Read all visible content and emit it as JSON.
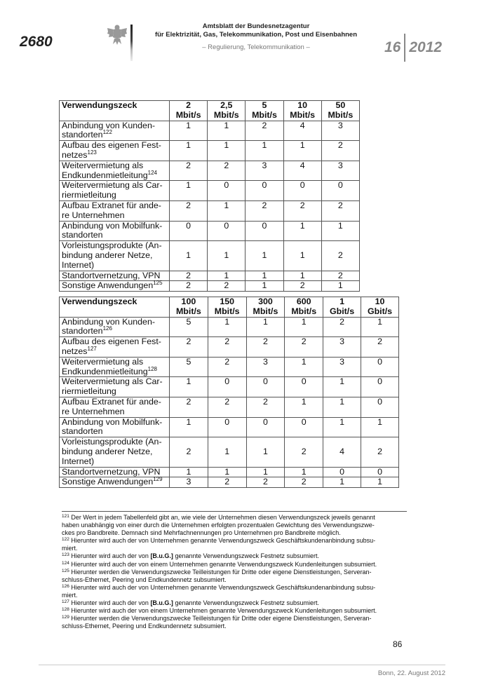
{
  "header": {
    "issue_number": "2680",
    "title_line1": "Amtsblatt der Bundesnetzagentur",
    "title_line2": "für Elektrizität, Gas, Telekommunikation, Post und Eisenbahnen",
    "subtitle": "– Regulierung, Telekommunikation –",
    "volume_number": "16",
    "volume_year": "2012",
    "logo": "federal-eagle-icon"
  },
  "tables": [
    {
      "columns": [
        [
          "Verwendungszeck"
        ],
        [
          "2",
          "Mbit/s"
        ],
        [
          "2,5",
          "Mbit/s"
        ],
        [
          "5",
          "Mbit/s"
        ],
        [
          "10",
          "Mbit/s"
        ],
        [
          "50",
          "Mbit/s"
        ]
      ],
      "rows": [
        {
          "label": [
            "Anbindung von Kunden-",
            "standorten"
          ],
          "sup": "122",
          "values": [
            "1",
            "1",
            "2",
            "4",
            "3"
          ]
        },
        {
          "label": [
            "Aufbau des eigenen Fest-",
            "netzes"
          ],
          "sup": "123",
          "values": [
            "1",
            "1",
            "1",
            "1",
            "2"
          ]
        },
        {
          "label": [
            "Weitervermietung als",
            "Endkundenmietleitung"
          ],
          "sup": "124",
          "values": [
            "2",
            "2",
            "3",
            "4",
            "3"
          ]
        },
        {
          "label": [
            "Weitervermietung als Car-",
            "riermietleitung"
          ],
          "sup": "",
          "values": [
            "1",
            "0",
            "0",
            "0",
            "0"
          ]
        },
        {
          "label": [
            "Aufbau Extranet für ande-",
            "re Unternehmen"
          ],
          "sup": "",
          "values": [
            "2",
            "1",
            "2",
            "2",
            "2"
          ]
        },
        {
          "label": [
            "Anbindung von Mobilfunk-",
            "standorten"
          ],
          "sup": "",
          "values": [
            "0",
            "0",
            "0",
            "1",
            "1"
          ]
        },
        {
          "label": [
            "Vorleistungsprodukte (An-",
            "bindung anderer Netze,",
            "Internet)"
          ],
          "sup": "",
          "values": [
            "1",
            "1",
            "1",
            "1",
            "2"
          ],
          "middle": true
        },
        {
          "label": [
            "Standortvernetzung, VPN"
          ],
          "sup": "",
          "values": [
            "2",
            "1",
            "1",
            "1",
            "2"
          ]
        },
        {
          "label": [
            "Sonstige Anwendungen"
          ],
          "sup": "125",
          "values": [
            "2",
            "2",
            "1",
            "2",
            "1"
          ]
        }
      ]
    },
    {
      "columns": [
        [
          "Verwendungszeck"
        ],
        [
          "100",
          "Mbit/s"
        ],
        [
          "150",
          "Mbit/s"
        ],
        [
          "300",
          "Mbit/s"
        ],
        [
          "600",
          "Mbit/s"
        ],
        [
          "1",
          "Gbit/s"
        ],
        [
          "10",
          "Gbit/s"
        ]
      ],
      "rows": [
        {
          "label": [
            "Anbindung von Kunden-",
            "standorten"
          ],
          "sup": "126",
          "values": [
            "5",
            "1",
            "1",
            "1",
            "2",
            "1"
          ]
        },
        {
          "label": [
            "Aufbau des eigenen Fest-",
            "netzes"
          ],
          "sup": "127",
          "values": [
            "2",
            "2",
            "2",
            "2",
            "3",
            "2"
          ]
        },
        {
          "label": [
            "Weitervermietung als",
            "Endkundenmietleitung"
          ],
          "sup": "128",
          "values": [
            "5",
            "2",
            "3",
            "1",
            "3",
            "0"
          ]
        },
        {
          "label": [
            "Weitervermietung als Car-",
            "riermietleitung"
          ],
          "sup": "",
          "values": [
            "1",
            "0",
            "0",
            "0",
            "1",
            "0"
          ]
        },
        {
          "label": [
            "Aufbau Extranet für ande-",
            "re Unternehmen"
          ],
          "sup": "",
          "values": [
            "2",
            "2",
            "2",
            "1",
            "1",
            "0"
          ]
        },
        {
          "label": [
            "Anbindung von Mobilfunk-",
            "standorten"
          ],
          "sup": "",
          "values": [
            "1",
            "0",
            "0",
            "0",
            "1",
            "1"
          ]
        },
        {
          "label": [
            "Vorleistungsprodukte (An-",
            "bindung anderer Netze,",
            "Internet)"
          ],
          "sup": "",
          "values": [
            "2",
            "1",
            "1",
            "2",
            "4",
            "2"
          ],
          "middle": true
        },
        {
          "label": [
            "Standortvernetzung, VPN"
          ],
          "sup": "",
          "values": [
            "1",
            "1",
            "1",
            "1",
            "0",
            "0"
          ]
        },
        {
          "label": [
            "Sonstige Anwendungen"
          ],
          "sup": "129",
          "values": [
            "3",
            "2",
            "2",
            "2",
            "1",
            "1"
          ]
        }
      ]
    }
  ],
  "footnotes": [
    {
      "num": "121",
      "before": "Der Wert in jedem Tabellenfeld gibt an, wie viele der Unternehmen diesen Verwendungszeck jeweils genannt\nhaben unabhängig von einer durch die Unternehmen erfolgten prozentualen Gewichtung des Verwendungszwe-\nckes pro Bandbreite. Demnach sind Mehrfachnennungen pro Unternehmen pro Bandbreite möglich.",
      "bold": "",
      "after": ""
    },
    {
      "num": "122",
      "before": "Hierunter wird auch der von Unternehmen genannte Verwendungszweck Geschäftskundenanbindung subsu-\nmiert.",
      "bold": "",
      "after": ""
    },
    {
      "num": "123",
      "before": "Hierunter wird auch der von ",
      "bold": "[B.u.G.]",
      "after": " genannte Verwendungszweck Festnetz subsumiert."
    },
    {
      "num": "124",
      "before": "Hierunter wird auch der von einem Unternehmen genannte Verwendungszweck Kundenleitungen subsumiert.",
      "bold": "",
      "after": ""
    },
    {
      "num": "125",
      "before": "Hierunter werden die Verwendungszwecke Teilleistungen für Dritte oder eigene Dienstleistungen, Serveran-\nschluss-Ethernet, Peering und Endkundennetz subsumiert.",
      "bold": "",
      "after": ""
    },
    {
      "num": "126",
      "before": "Hierunter wird auch der von Unternehmen genannte Verwendungszweck Geschäftskundenanbindung subsu-\nmiert.",
      "bold": "",
      "after": ""
    },
    {
      "num": "127",
      "before": "Hierunter wird auch der von ",
      "bold": "[B.u.G.]",
      "after": " genannte Verwendungszweck Festnetz subsumiert."
    },
    {
      "num": "128",
      "before": "Hierunter wird auch der von einem Unternehmen genannte Verwendungszweck Kundenleitungen subsumiert.",
      "bold": "",
      "after": ""
    },
    {
      "num": "129",
      "before": "Hierunter werden die Verwendungszwecke Teilleistungen für Dritte oder eigene Dienstleistungen, Serveran-\nschluss-Ethernet, Peering und Endkundennetz subsumiert.",
      "bold": "",
      "after": ""
    }
  ],
  "page_number": "86",
  "footer": {
    "date": "Bonn, 22. August 2012"
  }
}
